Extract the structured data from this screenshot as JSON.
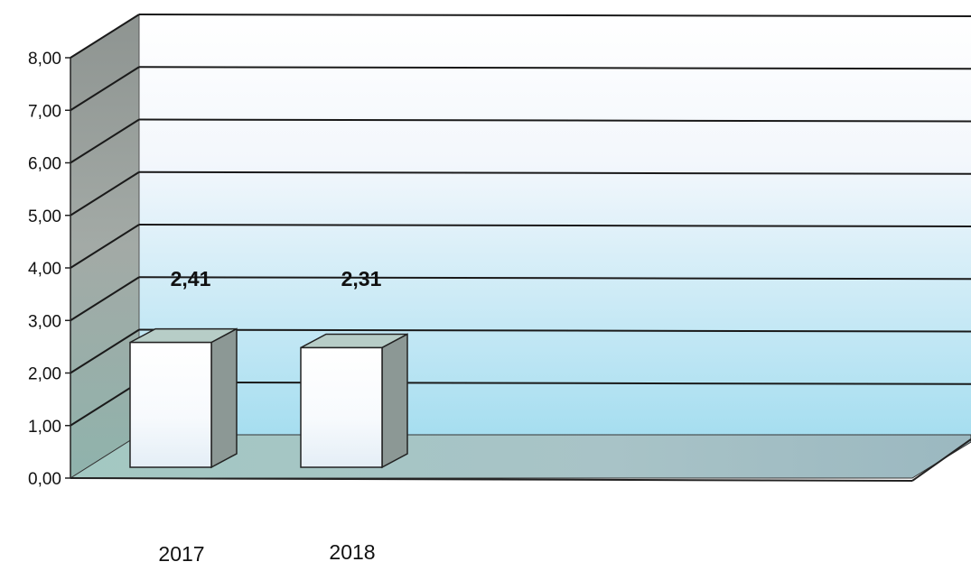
{
  "chart_data": {
    "type": "bar",
    "style": "3d",
    "categories": [
      "2017",
      "2018"
    ],
    "values": [
      2.41,
      2.31
    ],
    "value_labels": [
      "2,41",
      "2,31"
    ],
    "ylim": [
      0,
      8
    ],
    "yticks": [
      0,
      1,
      2,
      3,
      4,
      5,
      6,
      7,
      8
    ],
    "ytick_labels": [
      "0,00",
      "1,00",
      "2,00",
      "3,00",
      "4,00",
      "5,00",
      "6,00",
      "7,00",
      "8,00"
    ],
    "grid": true,
    "legend": "none",
    "title": "",
    "xlabel": "",
    "ylabel": "",
    "colors": {
      "bar_front": "#ffffff",
      "bar_side": "#8c9895",
      "bar_top": "#b7cdc7",
      "side_wall": "#9aa29f",
      "floor": "#a9c4c6",
      "wall_top": "#ffffff",
      "wall_bottom": "#a6def0",
      "grid": "#1a1a1a"
    }
  }
}
